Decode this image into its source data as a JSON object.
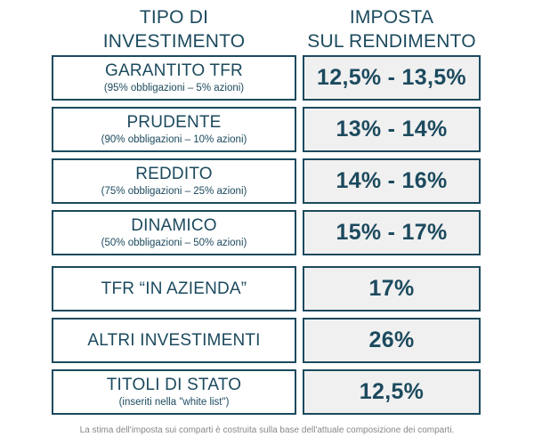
{
  "header": {
    "col1_line1": "TIPO DI",
    "col1_line2": "INVESTIMENTO",
    "col2_line1": "IMPOSTA",
    "col2_line2": "SUL RENDIMENTO"
  },
  "rows": [
    {
      "name": "GARANTITO TFR",
      "detail": "(95% obbligazioni – 5% azioni)",
      "rate": "12,5% - 13,5%"
    },
    {
      "name": "PRUDENTE",
      "detail": "(90% obbligazioni – 10% azioni)",
      "rate": "13% - 14%"
    },
    {
      "name": "REDDITO",
      "detail": "(75% obbligazioni – 25% azioni)",
      "rate": "14% - 16%"
    },
    {
      "name": "DINAMICO",
      "detail": "(50% obbligazioni – 50% azioni)",
      "rate": "15% - 17%"
    },
    {
      "name": "TFR “IN AZIENDA”",
      "detail": "",
      "rate": "17%"
    },
    {
      "name": "ALTRI INVESTIMENTI",
      "detail": "",
      "rate": "26%"
    },
    {
      "name": "TITOLI DI STATO",
      "detail": "(inseriti nella \"white list\")",
      "rate": "12,5%"
    }
  ],
  "footnote": "La stima dell'imposta sui comparti è costruita sulla base dell'attuale composizione dei comparti.",
  "colors": {
    "primary": "#1c4a5e",
    "rate_background": "#f0f0f0",
    "footnote": "#888888"
  }
}
